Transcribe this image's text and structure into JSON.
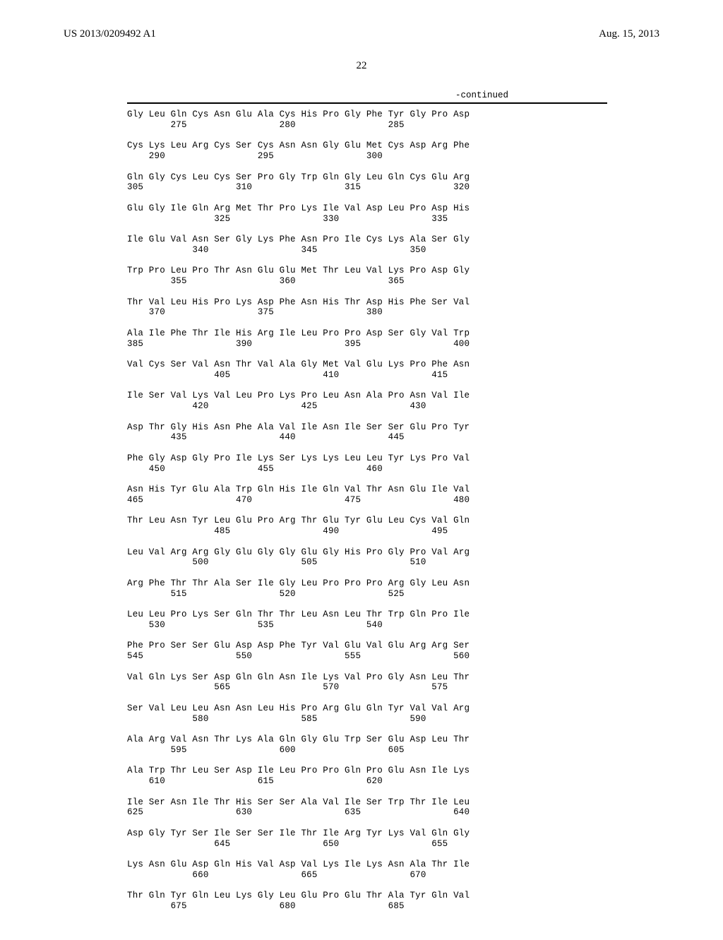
{
  "header": {
    "patent_pub": "US 2013/0209492 A1",
    "pub_date": "Aug. 15, 2013"
  },
  "page_number": "22",
  "continued_label": "-continued",
  "sequence": [
    {
      "aa": "Gly Leu Gln Cys Asn Glu Ala Cys His Pro Gly Phe Tyr Gly Pro Asp",
      "nums": "        275                 280                 285"
    },
    {
      "aa": "Cys Lys Leu Arg Cys Ser Cys Asn Asn Gly Glu Met Cys Asp Arg Phe",
      "nums": "    290                 295                 300"
    },
    {
      "aa": "Gln Gly Cys Leu Cys Ser Pro Gly Trp Gln Gly Leu Gln Cys Glu Arg",
      "nums": "305                 310                 315                 320"
    },
    {
      "aa": "Glu Gly Ile Gln Arg Met Thr Pro Lys Ile Val Asp Leu Pro Asp His",
      "nums": "                325                 330                 335"
    },
    {
      "aa": "Ile Glu Val Asn Ser Gly Lys Phe Asn Pro Ile Cys Lys Ala Ser Gly",
      "nums": "            340                 345                 350"
    },
    {
      "aa": "Trp Pro Leu Pro Thr Asn Glu Glu Met Thr Leu Val Lys Pro Asp Gly",
      "nums": "        355                 360                 365"
    },
    {
      "aa": "Thr Val Leu His Pro Lys Asp Phe Asn His Thr Asp His Phe Ser Val",
      "nums": "    370                 375                 380"
    },
    {
      "aa": "Ala Ile Phe Thr Ile His Arg Ile Leu Pro Pro Asp Ser Gly Val Trp",
      "nums": "385                 390                 395                 400"
    },
    {
      "aa": "Val Cys Ser Val Asn Thr Val Ala Gly Met Val Glu Lys Pro Phe Asn",
      "nums": "                405                 410                 415"
    },
    {
      "aa": "Ile Ser Val Lys Val Leu Pro Lys Pro Leu Asn Ala Pro Asn Val Ile",
      "nums": "            420                 425                 430"
    },
    {
      "aa": "Asp Thr Gly His Asn Phe Ala Val Ile Asn Ile Ser Ser Glu Pro Tyr",
      "nums": "        435                 440                 445"
    },
    {
      "aa": "Phe Gly Asp Gly Pro Ile Lys Ser Lys Lys Leu Leu Tyr Lys Pro Val",
      "nums": "    450                 455                 460"
    },
    {
      "aa": "Asn His Tyr Glu Ala Trp Gln His Ile Gln Val Thr Asn Glu Ile Val",
      "nums": "465                 470                 475                 480"
    },
    {
      "aa": "Thr Leu Asn Tyr Leu Glu Pro Arg Thr Glu Tyr Glu Leu Cys Val Gln",
      "nums": "                485                 490                 495"
    },
    {
      "aa": "Leu Val Arg Arg Gly Glu Gly Gly Glu Gly His Pro Gly Pro Val Arg",
      "nums": "            500                 505                 510"
    },
    {
      "aa": "Arg Phe Thr Thr Ala Ser Ile Gly Leu Pro Pro Pro Arg Gly Leu Asn",
      "nums": "        515                 520                 525"
    },
    {
      "aa": "Leu Leu Pro Lys Ser Gln Thr Thr Leu Asn Leu Thr Trp Gln Pro Ile",
      "nums": "    530                 535                 540"
    },
    {
      "aa": "Phe Pro Ser Ser Glu Asp Asp Phe Tyr Val Glu Val Glu Arg Arg Ser",
      "nums": "545                 550                 555                 560"
    },
    {
      "aa": "Val Gln Lys Ser Asp Gln Gln Asn Ile Lys Val Pro Gly Asn Leu Thr",
      "nums": "                565                 570                 575"
    },
    {
      "aa": "Ser Val Leu Leu Asn Asn Leu His Pro Arg Glu Gln Tyr Val Val Arg",
      "nums": "            580                 585                 590"
    },
    {
      "aa": "Ala Arg Val Asn Thr Lys Ala Gln Gly Glu Trp Ser Glu Asp Leu Thr",
      "nums": "        595                 600                 605"
    },
    {
      "aa": "Ala Trp Thr Leu Ser Asp Ile Leu Pro Pro Gln Pro Glu Asn Ile Lys",
      "nums": "    610                 615                 620"
    },
    {
      "aa": "Ile Ser Asn Ile Thr His Ser Ser Ala Val Ile Ser Trp Thr Ile Leu",
      "nums": "625                 630                 635                 640"
    },
    {
      "aa": "Asp Gly Tyr Ser Ile Ser Ser Ile Thr Ile Arg Tyr Lys Val Gln Gly",
      "nums": "                645                 650                 655"
    },
    {
      "aa": "Lys Asn Glu Asp Gln His Val Asp Val Lys Ile Lys Asn Ala Thr Ile",
      "nums": "            660                 665                 670"
    },
    {
      "aa": "Thr Gln Tyr Gln Leu Lys Gly Leu Glu Pro Glu Thr Ala Tyr Gln Val",
      "nums": "        675                 680                 685"
    }
  ]
}
